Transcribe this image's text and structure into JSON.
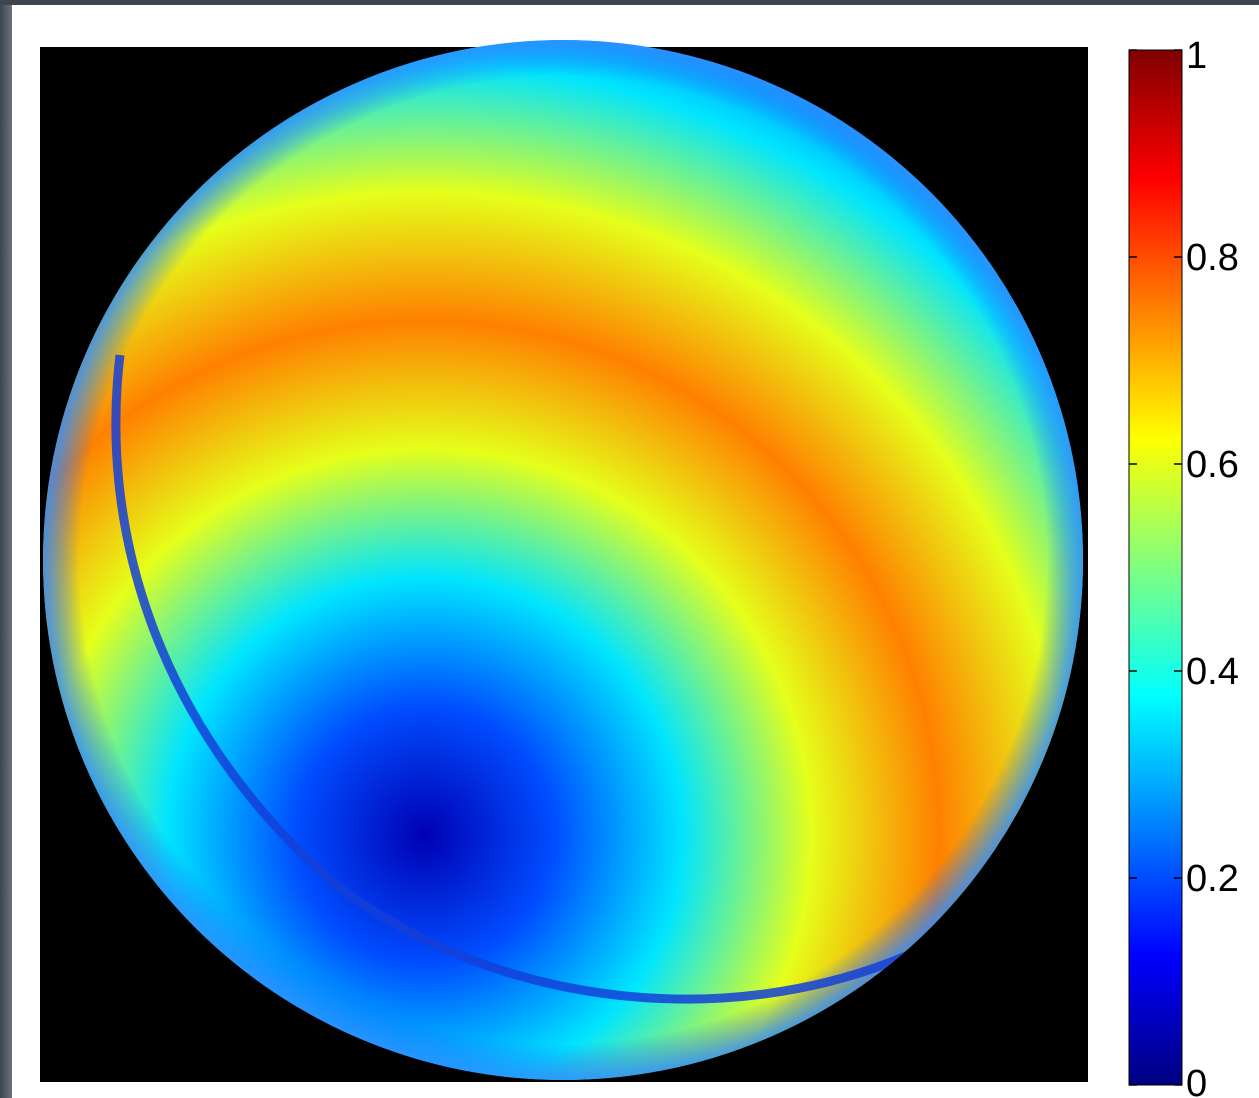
{
  "chart_data": {
    "type": "heatmap",
    "title": "",
    "xlabel": "",
    "ylabel": "",
    "colormap": "jet",
    "colorbar": {
      "range": [
        0,
        1
      ],
      "ticks": [
        {
          "value": 0,
          "label": "0"
        },
        {
          "value": 0.2,
          "label": "0.2"
        },
        {
          "value": 0.4,
          "label": "0.4"
        },
        {
          "value": 0.6,
          "label": "0.6"
        },
        {
          "value": 0.8,
          "label": "0.8"
        },
        {
          "value": 1,
          "label": "1"
        }
      ],
      "placement": "right"
    },
    "field": {
      "shape": "circular",
      "background": "#000000",
      "min_location": "lower-left-center",
      "max_band_value": 0.75,
      "bands": [
        {
          "value": 0.05,
          "description": "minimum"
        },
        {
          "value": 0.2
        },
        {
          "value": 0.35
        },
        {
          "value": 0.6
        },
        {
          "value": 0.75
        },
        {
          "value": 0.6
        },
        {
          "value": 0.35
        },
        {
          "value": 0.2
        }
      ]
    }
  }
}
